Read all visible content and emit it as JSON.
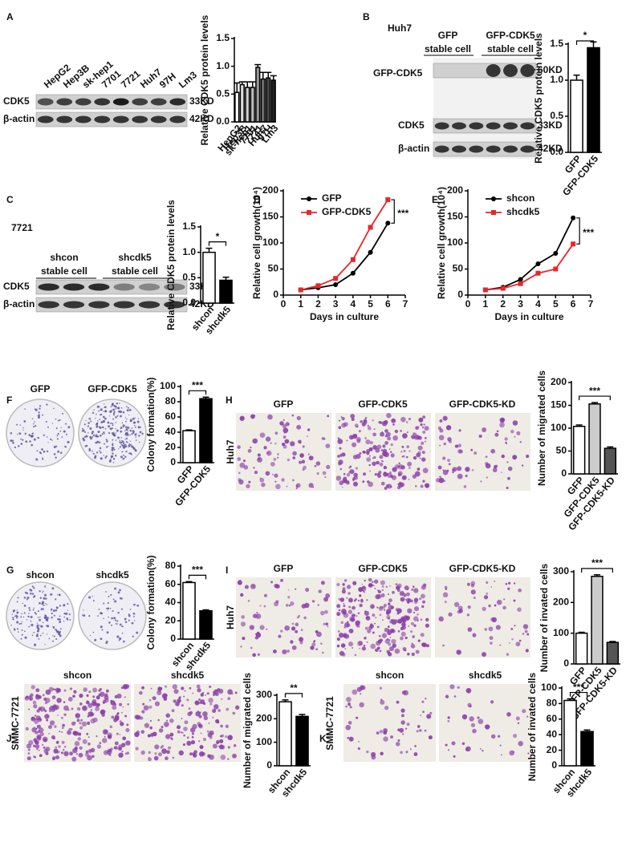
{
  "panels": [
    {
      "letter": "A",
      "lanes": [
        "HepG2",
        "Hep3B",
        "sk-hep1",
        "7701",
        "7721",
        "Huh7",
        "97H",
        "Lm3"
      ],
      "rows": [
        "CDK5",
        "β-actin"
      ],
      "sizes": [
        "33KD",
        "42KD"
      ],
      "chart_data": {
        "type": "bar",
        "ylabel": "Relative CDK5 protein levels",
        "categories": [
          "HepG2",
          "Hep3B",
          "sk-hep1",
          "7701",
          "7721",
          "Huh7",
          "97H",
          "Lm3"
        ],
        "values": [
          0.53,
          0.67,
          0.62,
          0.62,
          0.98,
          0.77,
          0.79,
          0.75
        ],
        "errors": [
          0.17,
          0.05,
          0.1,
          0.1,
          0.05,
          0.12,
          0.1,
          0.08
        ],
        "colors": [
          "#ffffff",
          "#e0e0e0",
          "#cfcfcf",
          "#bdbdbd",
          "#9a9a9a",
          "#6e6e6e",
          "#474747",
          "#222222"
        ],
        "ylim": [
          0,
          1.5
        ],
        "yticks": [
          {
            "value": 0,
            "label": "0.0"
          },
          0.5,
          {
            "value": 1,
            "label": "1.0"
          },
          1.5
        ]
      }
    },
    {
      "letter": "B",
      "cell_line": "Huh7",
      "groups": [
        {
          "name": "GFP",
          "sub": "stable cell"
        },
        {
          "name": "GFP-CDK5",
          "sub": "stable cell"
        }
      ],
      "rows": [
        "GFP-CDK5",
        "CDK5",
        "β-actin"
      ],
      "sizes": [
        "60KD",
        "33KD",
        "42KD"
      ],
      "chart_data": {
        "type": "bar",
        "ylabel": "Relative CDK5 protein levels",
        "categories": [
          "GFP",
          "GFP-CDK5"
        ],
        "values": [
          1.0,
          1.45
        ],
        "errors": [
          0.07,
          0.08
        ],
        "colors": [
          "#ffffff",
          "#000000"
        ],
        "ylim": [
          0,
          1.5
        ],
        "yticks": [
          {
            "value": 0,
            "label": "0.0"
          },
          0.5,
          {
            "value": 1,
            "label": "1.0"
          },
          1.5
        ],
        "annotation": "*"
      }
    },
    {
      "letter": "C",
      "cell_line": "7721",
      "groups": [
        {
          "name": "shcon",
          "sub": "stable cell"
        },
        {
          "name": "shcdk5",
          "sub": "stable cell"
        }
      ],
      "rows": [
        "CDK5",
        "β-actin"
      ],
      "sizes": [
        "33KD",
        "42KD"
      ],
      "chart_data": {
        "type": "bar",
        "ylabel": "Relative CDK5 protein levels",
        "categories": [
          "shcon",
          "shcdk5"
        ],
        "values": [
          1.0,
          0.45
        ],
        "errors": [
          0.08,
          0.06
        ],
        "colors": [
          "#ffffff",
          "#000000"
        ],
        "ylim": [
          0,
          1.5
        ],
        "yticks": [
          {
            "value": 0,
            "label": "0.0"
          },
          0.5,
          {
            "value": 1,
            "label": "1.0"
          },
          1.5
        ],
        "annotation": "*"
      }
    },
    {
      "letter": "D",
      "chart_data": {
        "type": "line",
        "ylabel": "Relative cell growth(10⁴)",
        "xlabel": "Days in culture",
        "x": [
          1,
          2,
          3,
          4,
          5,
          6
        ],
        "series": [
          {
            "name": "GFP",
            "color": "#000000",
            "values": [
              10,
              14,
              20,
              42,
              82,
              138
            ]
          },
          {
            "name": "GFP-CDK5",
            "color": "#e8262a",
            "values": [
              10,
              18,
              32,
              68,
              130,
              183
            ]
          }
        ],
        "xlim": [
          0,
          7
        ],
        "xticks": [
          0,
          1,
          2,
          3,
          4,
          5,
          6,
          7
        ],
        "ylim": [
          0,
          200
        ],
        "yticks": [
          0,
          50,
          100,
          150,
          200
        ],
        "annotation": "***"
      }
    },
    {
      "letter": "E",
      "chart_data": {
        "type": "line",
        "ylabel": "Relative cell growth(10⁴)",
        "xlabel": "Days in culture",
        "x": [
          1,
          2,
          3,
          4,
          5,
          6
        ],
        "series": [
          {
            "name": "shcon",
            "color": "#000000",
            "values": [
              10,
              15,
              30,
              60,
              80,
              148
            ]
          },
          {
            "name": "shcdk5",
            "color": "#e8262a",
            "values": [
              10,
              13,
              22,
              42,
              50,
              98
            ]
          }
        ],
        "xlim": [
          0,
          7
        ],
        "xticks": [
          0,
          1,
          2,
          3,
          4,
          5,
          6,
          7
        ],
        "ylim": [
          0,
          200
        ],
        "yticks": [
          0,
          50,
          100,
          150,
          200
        ],
        "annotation": "***"
      }
    },
    {
      "letter": "F",
      "images": [
        "GFP",
        "GFP-CDK5"
      ],
      "chart_data": {
        "type": "bar",
        "ylabel": "Colony formation(%)",
        "categories": [
          "GFP",
          "GFP-CDK5"
        ],
        "values": [
          42,
          84
        ],
        "errors": [
          1,
          2
        ],
        "colors": [
          "#ffffff",
          "#000000"
        ],
        "ylim": [
          0,
          100
        ],
        "yticks": [
          0,
          20,
          40,
          60,
          80,
          100
        ],
        "annotation": "***"
      }
    },
    {
      "letter": "G",
      "images": [
        "shcon",
        "shcdk5"
      ],
      "chart_data": {
        "type": "bar",
        "ylabel": "Colony formation(%)",
        "categories": [
          "shcon",
          "shcdk5"
        ],
        "values": [
          62,
          31
        ],
        "errors": [
          1,
          1
        ],
        "colors": [
          "#ffffff",
          "#000000"
        ],
        "ylim": [
          0,
          80
        ],
        "yticks": [
          0,
          20,
          40,
          60,
          80
        ],
        "annotation": "***"
      }
    },
    {
      "letter": "H",
      "cell_line": "Huh7",
      "images": [
        "GFP",
        "GFP-CDK5",
        "GFP-CDK5-KD"
      ],
      "chart_data": {
        "type": "bar",
        "ylabel": "Number of migrated cells",
        "categories": [
          "GFP",
          "GFP-CDK5",
          "GFP-CDK5-KD"
        ],
        "values": [
          104,
          153,
          56
        ],
        "errors": [
          3,
          3,
          3
        ],
        "colors": [
          "#ffffff",
          "#cccccc",
          "#555555"
        ],
        "ylim": [
          0,
          200
        ],
        "yticks": [
          0,
          50,
          100,
          150,
          200
        ],
        "annotation": "***"
      }
    },
    {
      "letter": "I",
      "cell_line": "Huh7",
      "images": [
        "GFP",
        "GFP-CDK5",
        "GFP-CDK5-KD"
      ],
      "chart_data": {
        "type": "bar",
        "ylabel": "Number of invated cells",
        "categories": [
          "GFP",
          "GFP-CDK5",
          "GFP-CDK5-KD"
        ],
        "values": [
          100,
          285,
          70
        ],
        "errors": [
          3,
          5,
          3
        ],
        "colors": [
          "#ffffff",
          "#cccccc",
          "#555555"
        ],
        "ylim": [
          0,
          300
        ],
        "yticks": [
          0,
          100,
          200,
          300
        ],
        "annotation": "***"
      }
    },
    {
      "letter": "J",
      "cell_line": "SMMC-7721",
      "images": [
        "shcon",
        "shcdk5"
      ],
      "chart_data": {
        "type": "bar",
        "ylabel": "Number of migrated cells",
        "categories": [
          "shcon",
          "shcdk5"
        ],
        "values": [
          272,
          210
        ],
        "errors": [
          8,
          8
        ],
        "colors": [
          "#ffffff",
          "#000000"
        ],
        "ylim": [
          0,
          300
        ],
        "yticks": [
          0,
          100,
          200,
          300
        ],
        "annotation": "**"
      }
    },
    {
      "letter": "K",
      "cell_line": "SMMC-7721",
      "images": [
        "shcon",
        "shcdk5"
      ],
      "chart_data": {
        "type": "bar",
        "ylabel": "Number of invated cells",
        "categories": [
          "shcon",
          "shcdk5"
        ],
        "values": [
          84,
          44
        ],
        "errors": [
          2,
          2
        ],
        "colors": [
          "#ffffff",
          "#000000"
        ],
        "ylim": [
          0,
          100
        ],
        "yticks": [
          0,
          20,
          40,
          60,
          80,
          100
        ],
        "annotation": "***"
      }
    }
  ]
}
